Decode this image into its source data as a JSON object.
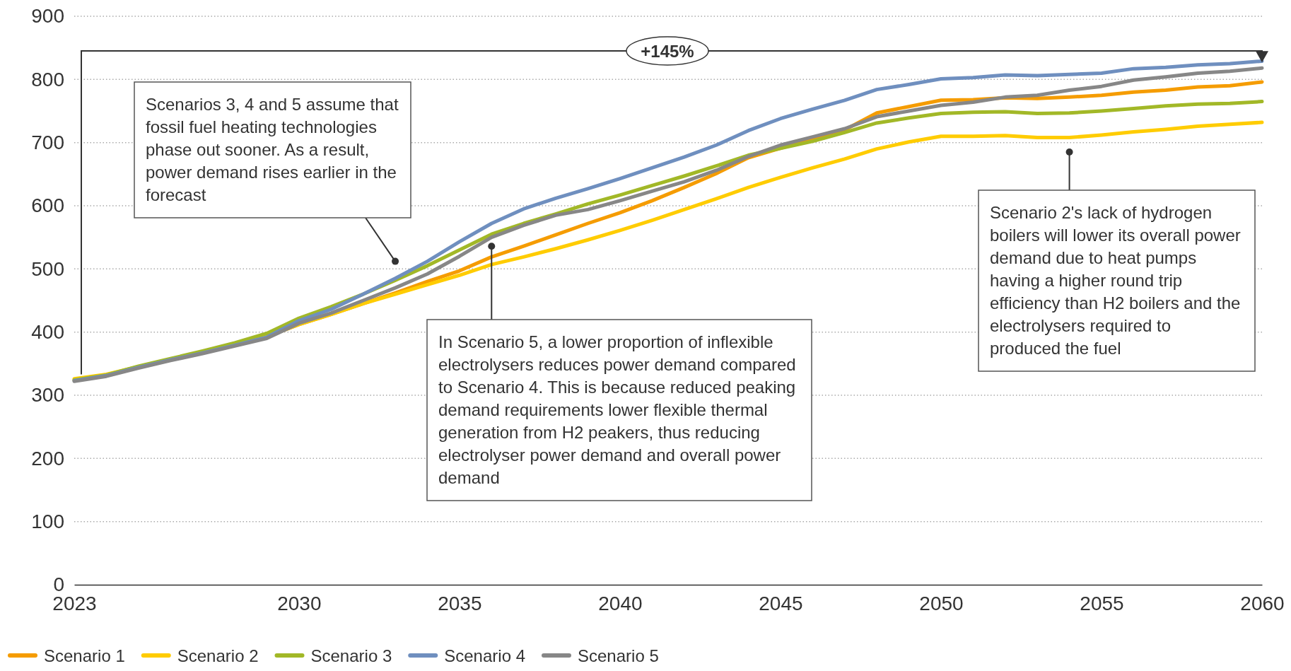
{
  "chart_data": {
    "type": "line",
    "x": [
      2023,
      2024,
      2025,
      2026,
      2027,
      2028,
      2029,
      2030,
      2031,
      2032,
      2033,
      2034,
      2035,
      2036,
      2037,
      2038,
      2039,
      2040,
      2041,
      2042,
      2043,
      2044,
      2045,
      2046,
      2047,
      2048,
      2049,
      2050,
      2051,
      2052,
      2053,
      2054,
      2055,
      2056,
      2057,
      2058,
      2059,
      2060
    ],
    "series": [
      {
        "name": "Scenario 1",
        "color": "#f59c00",
        "values": [
          324,
          332,
          345,
          357,
          368,
          380,
          393,
          412,
          428,
          445,
          462,
          480,
          497,
          519,
          536,
          554,
          572,
          589,
          608,
          629,
          651,
          676,
          691,
          705,
          720,
          747,
          757,
          767,
          768,
          771,
          770,
          772,
          775,
          780,
          783,
          788,
          790,
          796
        ]
      },
      {
        "name": "Scenario 2",
        "color": "#ffcc00",
        "values": [
          326,
          333,
          345,
          357,
          368,
          380,
          393,
          412,
          428,
          445,
          460,
          475,
          490,
          507,
          519,
          532,
          546,
          561,
          577,
          594,
          611,
          629,
          645,
          660,
          674,
          690,
          701,
          710,
          710,
          711,
          708,
          708,
          712,
          717,
          721,
          726,
          729,
          732
        ]
      },
      {
        "name": "Scenario 3",
        "color": "#a2b827",
        "values": [
          324,
          332,
          346,
          358,
          370,
          383,
          398,
          422,
          440,
          460,
          482,
          505,
          530,
          555,
          572,
          587,
          603,
          617,
          632,
          647,
          663,
          680,
          691,
          702,
          716,
          731,
          739,
          746,
          748,
          749,
          746,
          747,
          750,
          754,
          758,
          761,
          762,
          765
        ]
      },
      {
        "name": "Scenario 4",
        "color": "#6f8fbf",
        "values": [
          323,
          331,
          344,
          356,
          367,
          379,
          392,
          418,
          436,
          460,
          485,
          512,
          543,
          572,
          595,
          612,
          627,
          643,
          660,
          677,
          696,
          719,
          738,
          753,
          767,
          784,
          792,
          801,
          803,
          807,
          806,
          808,
          810,
          817,
          819,
          823,
          825,
          829
        ]
      },
      {
        "name": "Scenario 5",
        "color": "#878787",
        "values": [
          322,
          330,
          343,
          355,
          366,
          378,
          390,
          414,
          430,
          450,
          470,
          492,
          520,
          550,
          569,
          585,
          594,
          608,
          623,
          638,
          656,
          678,
          696,
          709,
          722,
          741,
          750,
          759,
          764,
          772,
          775,
          783,
          789,
          799,
          804,
          810,
          813,
          818
        ]
      }
    ],
    "xlim": [
      2023,
      2060
    ],
    "xticks": [
      2023,
      2030,
      2035,
      2040,
      2045,
      2050,
      2055,
      2060
    ],
    "ylim": [
      0,
      900
    ],
    "yticks": [
      0,
      100,
      200,
      300,
      400,
      500,
      600,
      700,
      800,
      900
    ],
    "grid": "y",
    "legend": "bottom",
    "marker": "none",
    "line_style": "solid",
    "annotations": [
      "+145%",
      {
        "text": "Scenarios 3, 4 and 5 assume that fossil fuel heating technologies phase out sooner. As a result, power demand rises earlier in the forecast",
        "x": 2033,
        "y": 512
      },
      {
        "text": "In Scenario 5, a lower proportion of inflexible electrolysers reduces power demand compared to Scenario 4. This is because reduced peaking demand requirements lower flexible thermal generation from H2 peakers, thus reducing electrolyser power demand and overall power demand",
        "x": 2036,
        "y": 536
      },
      {
        "text": "Scenario 2's lack of hydrogen boilers will lower its overall power demand due to heat pumps having a higher round trip efficiency than H2 boilers and the electrolysers required to produced the fuel",
        "x": 2054,
        "y": 685
      }
    ]
  }
}
